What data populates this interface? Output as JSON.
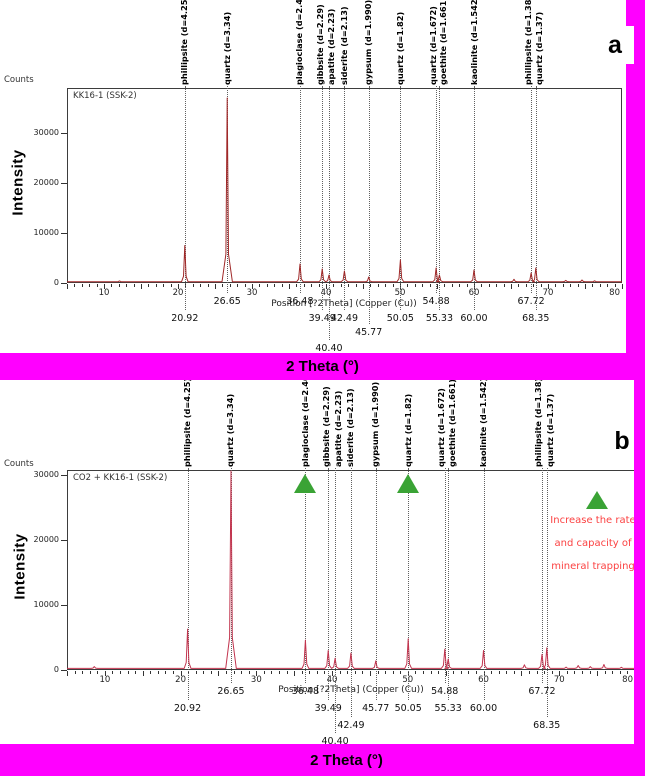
{
  "figure": {
    "border_color": "#ff00ff",
    "theta_axis_label": "2 Theta (°)",
    "marker_green": "#3aa335"
  },
  "panels": [
    {
      "corner_label": "a",
      "counts_label": "Counts"
    },
    {
      "corner_label": "b",
      "counts_label": "Counts",
      "note": {
        "lines": [
          "Increase the rate",
          "and  capacity  of",
          "mineral trapping"
        ],
        "color": "#fb4242"
      }
    }
  ],
  "chart_data": [
    {
      "type": "line",
      "title": "KK16-1 (SSK-2)",
      "xlabel": "Position [?2Theta] (Copper (Cu))",
      "ylabel": "Intensity",
      "y_units_label": "Counts",
      "xlim": [
        5,
        80
      ],
      "ylim": [
        0,
        39000
      ],
      "x_ticks": [
        10,
        20,
        30,
        40,
        50,
        60,
        70,
        80
      ],
      "y_ticks": [
        0,
        10000,
        20000,
        30000
      ],
      "line_color": "#a02828",
      "baseline_counts": 250,
      "peaks": [
        {
          "mineral": "phillipsite",
          "d": "4.25",
          "two_theta": 20.92,
          "label": "20.92",
          "intensity": 7500,
          "label_row": 1,
          "label_dx": 0
        },
        {
          "mineral": "quartz",
          "d": "3.34",
          "two_theta": 26.65,
          "label": "26.65",
          "intensity": 37000,
          "label_row": 0,
          "label_dx": 0
        },
        {
          "mineral": "plagioclase",
          "d": "2.46",
          "two_theta": 36.48,
          "label": "36.48",
          "intensity": 3800,
          "label_row": 0,
          "label_dx": 0
        },
        {
          "mineral": "gibbsite",
          "d": "2.29",
          "two_theta": 39.49,
          "label": "39.49",
          "intensity": 2800,
          "label_row": 1,
          "label_dx": -2
        },
        {
          "mineral": "apatite",
          "d": "2.23",
          "two_theta": 40.4,
          "label": "40.40",
          "intensity": 1600,
          "label_row": 3,
          "label_dx": 3
        },
        {
          "mineral": "siderite",
          "d": "2.13",
          "two_theta": 42.49,
          "label": "42.49",
          "intensity": 2400,
          "label_row": 1,
          "label_dx": 0
        },
        {
          "mineral": "gypsum",
          "d": "1.990",
          "two_theta": 45.77,
          "label": "45.77",
          "intensity": 1200,
          "label_row": 2,
          "label_dx": 0
        },
        {
          "mineral": "quartz",
          "d": "1.82",
          "two_theta": 50.05,
          "label": "50.05",
          "intensity": 4600,
          "label_row": 1,
          "label_dx": 0
        },
        {
          "mineral": "quartz",
          "d": "1.672",
          "two_theta": 54.88,
          "label": "54.88",
          "intensity": 3000,
          "label_row": 0,
          "label_dx": -3
        },
        {
          "mineral": "goethite",
          "d": "1.661",
          "two_theta": 55.33,
          "label": "55.33",
          "intensity": 1600,
          "label_row": 1,
          "label_dx": 4
        },
        {
          "mineral": "kaolinite",
          "d": "1.542",
          "two_theta": 60.0,
          "label": "60.00",
          "intensity": 2600,
          "label_row": 1,
          "label_dx": 0
        },
        {
          "mineral": "phillipsite",
          "d": "1.38",
          "two_theta": 67.72,
          "label": "67.72",
          "intensity": 2000,
          "label_row": 0,
          "label_dx": -3
        },
        {
          "mineral": "quartz",
          "d": "1.37",
          "two_theta": 68.35,
          "label": "68.35",
          "intensity": 3000,
          "label_row": 1,
          "label_dx": 4
        }
      ],
      "minor_bumps": [
        {
          "two_theta": 12.1,
          "intensity": 420
        },
        {
          "two_theta": 65.4,
          "intensity": 750
        },
        {
          "two_theta": 72.4,
          "intensity": 520
        },
        {
          "two_theta": 74.6,
          "intensity": 600
        },
        {
          "two_theta": 76.3,
          "intensity": 450
        }
      ]
    },
    {
      "type": "line",
      "title": "CO2 + KK16-1 (SSK-2)",
      "xlabel": "Position [?2Theta] (Copper (Cu))",
      "ylabel": "Intensity",
      "y_units_label": "Counts",
      "xlim": [
        5,
        80
      ],
      "ylim": [
        0,
        30800
      ],
      "x_ticks": [
        10,
        20,
        30,
        40,
        50,
        60,
        70,
        80
      ],
      "y_ticks": [
        0,
        10000,
        20000,
        30000
      ],
      "line_color": "#c2344e",
      "baseline_counts": 250,
      "marked_peaks": [
        36.48,
        50.05
      ],
      "peaks": [
        {
          "mineral": "phillipsite",
          "d": "4.25",
          "two_theta": 20.92,
          "label": "20.92",
          "intensity": 6300,
          "label_row": 1,
          "label_dx": 0
        },
        {
          "mineral": "quartz",
          "d": "3.34",
          "two_theta": 26.65,
          "label": "26.65",
          "intensity": 32000,
          "label_row": 0,
          "label_dx": 0
        },
        {
          "mineral": "plagioclase",
          "d": "2.46",
          "two_theta": 36.48,
          "label": "36.48",
          "intensity": 4600,
          "label_row": 0,
          "label_dx": 0
        },
        {
          "mineral": "gibbsite",
          "d": "2.29",
          "two_theta": 39.49,
          "label": "39.49",
          "intensity": 3000,
          "label_row": 1,
          "label_dx": -2
        },
        {
          "mineral": "apatite",
          "d": "2.23",
          "two_theta": 40.4,
          "label": "40.40",
          "intensity": 1800,
          "label_row": 3,
          "label_dx": 3
        },
        {
          "mineral": "siderite",
          "d": "2.13",
          "two_theta": 42.49,
          "label": "42.49",
          "intensity": 2600,
          "label_row": 2,
          "label_dx": 0
        },
        {
          "mineral": "gypsum",
          "d": "1.990",
          "two_theta": 45.77,
          "label": "45.77",
          "intensity": 1400,
          "label_row": 1,
          "label_dx": 0
        },
        {
          "mineral": "quartz",
          "d": "1.82",
          "two_theta": 50.05,
          "label": "50.05",
          "intensity": 4800,
          "label_row": 1,
          "label_dx": 0
        },
        {
          "mineral": "quartz",
          "d": "1.672",
          "two_theta": 54.88,
          "label": "54.88",
          "intensity": 3200,
          "label_row": 0,
          "label_dx": -3
        },
        {
          "mineral": "goethite",
          "d": "1.661",
          "two_theta": 55.33,
          "label": "55.33",
          "intensity": 1700,
          "label_row": 1,
          "label_dx": 4
        },
        {
          "mineral": "kaolinite",
          "d": "1.542",
          "two_theta": 60.0,
          "label": "60.00",
          "intensity": 3000,
          "label_row": 1,
          "label_dx": 0
        },
        {
          "mineral": "phillipsite",
          "d": "1.38",
          "two_theta": 67.72,
          "label": "67.72",
          "intensity": 2400,
          "label_row": 0,
          "label_dx": -3
        },
        {
          "mineral": "quartz",
          "d": "1.37",
          "two_theta": 68.35,
          "label": "68.35",
          "intensity": 3400,
          "label_row": 2,
          "label_dx": 4
        }
      ],
      "minor_bumps": [
        {
          "two_theta": 8.6,
          "intensity": 520
        },
        {
          "two_theta": 65.4,
          "intensity": 800
        },
        {
          "two_theta": 70.9,
          "intensity": 450
        },
        {
          "two_theta": 72.5,
          "intensity": 700
        },
        {
          "two_theta": 74.1,
          "intensity": 520
        },
        {
          "two_theta": 75.9,
          "intensity": 850
        },
        {
          "two_theta": 78.2,
          "intensity": 420
        }
      ]
    }
  ]
}
